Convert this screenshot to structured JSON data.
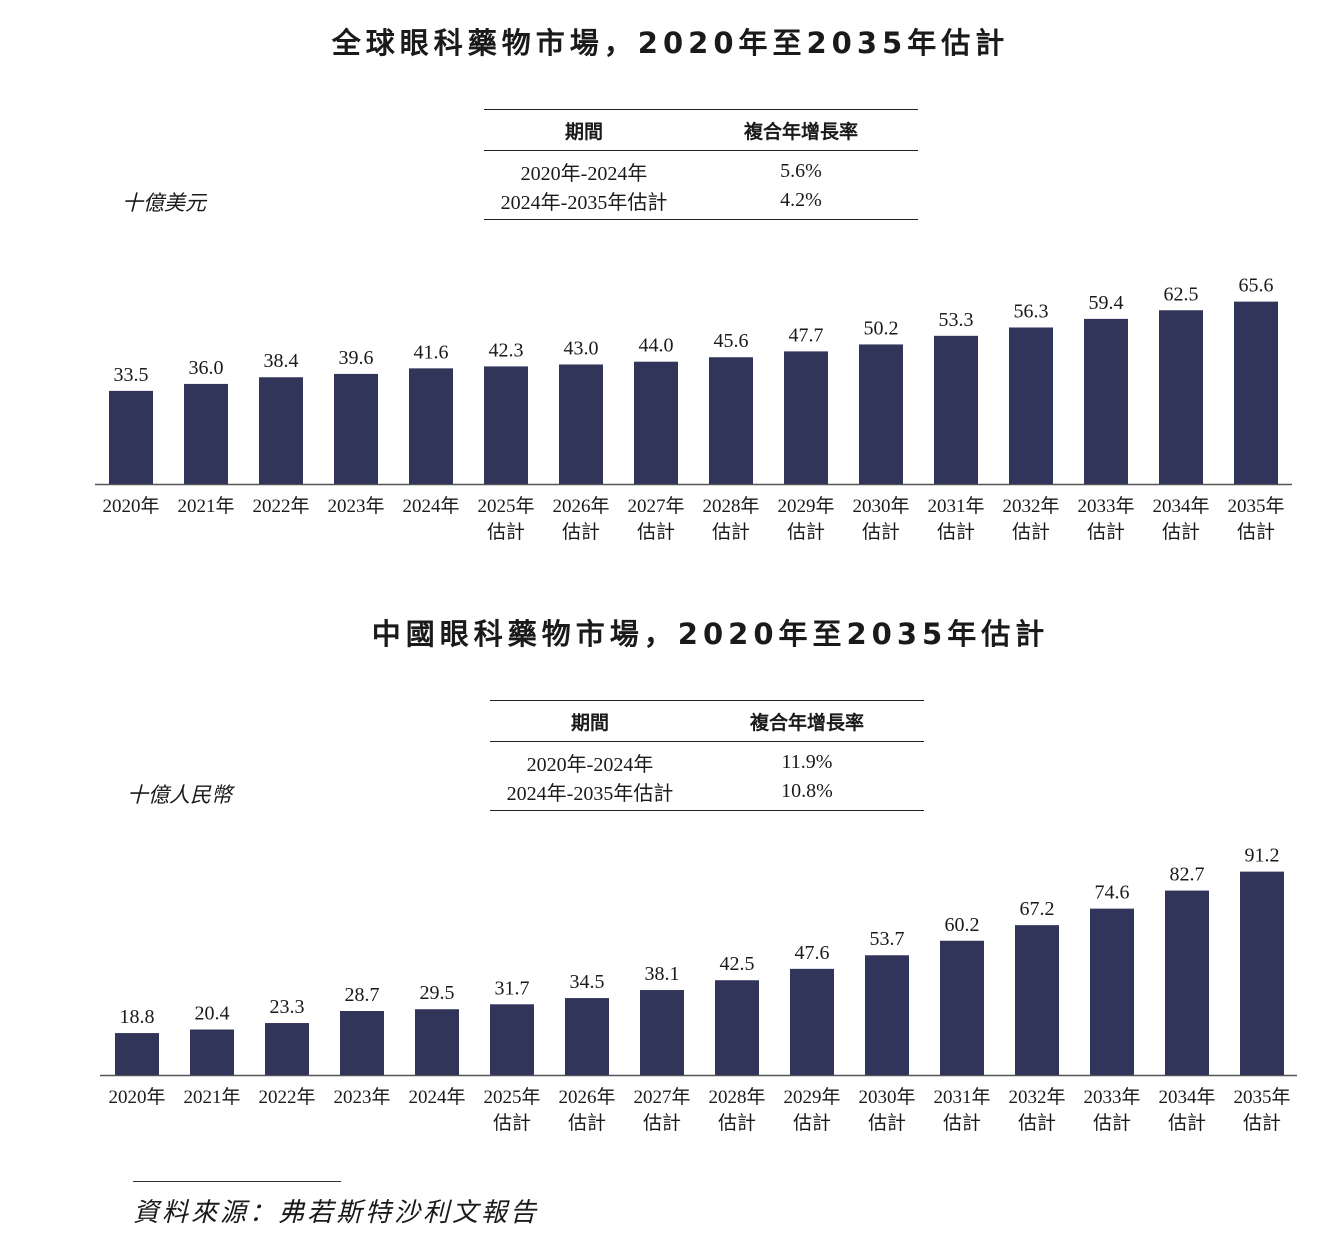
{
  "chart_data": [
    {
      "type": "bar",
      "title": "全球眼科藥物市場，2020年至2035年估計",
      "ylabel": "十億美元",
      "categories": [
        [
          "2020年"
        ],
        [
          "2021年"
        ],
        [
          "2022年"
        ],
        [
          "2023年"
        ],
        [
          "2024年"
        ],
        [
          "2025年",
          "估計"
        ],
        [
          "2026年",
          "估計"
        ],
        [
          "2027年",
          "估計"
        ],
        [
          "2028年",
          "估計"
        ],
        [
          "2029年",
          "估計"
        ],
        [
          "2030年",
          "估計"
        ],
        [
          "2031年",
          "估計"
        ],
        [
          "2032年",
          "估計"
        ],
        [
          "2033年",
          "估計"
        ],
        [
          "2034年",
          "估計"
        ],
        [
          "2035年",
          "估計"
        ]
      ],
      "values": [
        33.5,
        36.0,
        38.4,
        39.6,
        41.6,
        42.3,
        43.0,
        44.0,
        45.6,
        47.7,
        50.2,
        53.3,
        56.3,
        59.4,
        62.5,
        65.6
      ],
      "value_labels": [
        "33.5",
        "36.0",
        "38.4",
        "39.6",
        "41.6",
        "42.3",
        "43.0",
        "44.0",
        "45.6",
        "47.7",
        "50.2",
        "53.3",
        "56.3",
        "59.4",
        "62.5",
        "65.6"
      ],
      "bar_color": "#32355a",
      "cagr_table": {
        "headers": [
          "期間",
          "複合年增長率"
        ],
        "rows": [
          [
            "2020年-2024年",
            "5.6%"
          ],
          [
            "2024年-2035年估計",
            "4.2%"
          ]
        ]
      }
    },
    {
      "type": "bar",
      "title": "中國眼科藥物市場，2020年至2035年估計",
      "ylabel": "十億人民幣",
      "categories": [
        [
          "2020年"
        ],
        [
          "2021年"
        ],
        [
          "2022年"
        ],
        [
          "2023年"
        ],
        [
          "2024年"
        ],
        [
          "2025年",
          "估計"
        ],
        [
          "2026年",
          "估計"
        ],
        [
          "2027年",
          "估計"
        ],
        [
          "2028年",
          "估計"
        ],
        [
          "2029年",
          "估計"
        ],
        [
          "2030年",
          "估計"
        ],
        [
          "2031年",
          "估計"
        ],
        [
          "2032年",
          "估計"
        ],
        [
          "2033年",
          "估計"
        ],
        [
          "2034年",
          "估計"
        ],
        [
          "2035年",
          "估計"
        ]
      ],
      "values": [
        18.8,
        20.4,
        23.3,
        28.7,
        29.5,
        31.7,
        34.5,
        38.1,
        42.5,
        47.6,
        53.7,
        60.2,
        67.2,
        74.6,
        82.7,
        91.2
      ],
      "value_labels": [
        "18.8",
        "20.4",
        "23.3",
        "28.7",
        "29.5",
        "31.7",
        "34.5",
        "38.1",
        "42.5",
        "47.6",
        "53.7",
        "60.2",
        "67.2",
        "74.6",
        "82.7",
        "91.2"
      ],
      "bar_color": "#32355a",
      "cagr_table": {
        "headers": [
          "期間",
          "複合年增長率"
        ],
        "rows": [
          [
            "2020年-2024年",
            "11.9%"
          ],
          [
            "2024年-2035年估計",
            "10.8%"
          ]
        ]
      }
    }
  ],
  "source": "資料來源：弗若斯特沙利文報告"
}
